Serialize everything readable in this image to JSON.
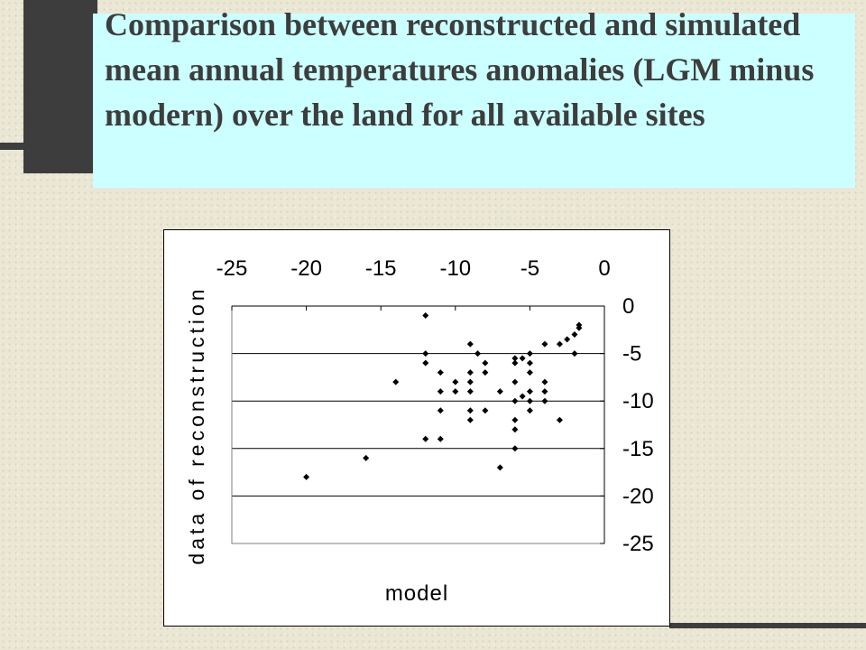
{
  "slide": {
    "title": "Comparison between reconstructed and simulated mean annual temperatures anomalies (LGM minus modern) over the land for all available sites"
  },
  "colors": {
    "background": "#ebe7d5",
    "title_box": "#ccffff",
    "title_text": "#3d3d3d",
    "decoration": "#3d3d3d",
    "plot_background": "#ffffff",
    "points": "#000000"
  },
  "chart_data": {
    "type": "scatter",
    "title": "",
    "xlabel": "model",
    "ylabel": "data of reconstruction",
    "x_axis_position": "top",
    "y_axis_position": "right",
    "xlim": [
      -25,
      0
    ],
    "ylim": [
      -25,
      0
    ],
    "xticks": [
      "-25",
      "-20",
      "-15",
      "-10",
      "-5",
      "0"
    ],
    "yticks": [
      "0",
      "-5",
      "-10",
      "-15",
      "-20",
      "-25"
    ],
    "x_tick_values": [
      -25,
      -20,
      -15,
      -10,
      -5,
      0
    ],
    "y_tick_values": [
      0,
      -5,
      -10,
      -15,
      -20,
      -25
    ],
    "horizontal_grid": true,
    "legend": "none",
    "marker": "diamond",
    "points": [
      {
        "x": -20,
        "y": -18
      },
      {
        "x": -16,
        "y": -16
      },
      {
        "x": -14,
        "y": -8
      },
      {
        "x": -12,
        "y": -1
      },
      {
        "x": -12,
        "y": -5
      },
      {
        "x": -12,
        "y": -6
      },
      {
        "x": -12,
        "y": -14
      },
      {
        "x": -11,
        "y": -7
      },
      {
        "x": -11,
        "y": -9
      },
      {
        "x": -11,
        "y": -11
      },
      {
        "x": -11,
        "y": -14
      },
      {
        "x": -10,
        "y": -8
      },
      {
        "x": -10,
        "y": -9
      },
      {
        "x": -9,
        "y": -4
      },
      {
        "x": -9,
        "y": -7
      },
      {
        "x": -9,
        "y": -8
      },
      {
        "x": -9,
        "y": -9
      },
      {
        "x": -9,
        "y": -11
      },
      {
        "x": -9,
        "y": -12
      },
      {
        "x": -8.5,
        "y": -5
      },
      {
        "x": -8,
        "y": -6
      },
      {
        "x": -8,
        "y": -7
      },
      {
        "x": -8,
        "y": -11
      },
      {
        "x": -7,
        "y": -9
      },
      {
        "x": -7,
        "y": -17
      },
      {
        "x": -6,
        "y": -5.5
      },
      {
        "x": -6,
        "y": -6
      },
      {
        "x": -6,
        "y": -8
      },
      {
        "x": -6,
        "y": -10
      },
      {
        "x": -6,
        "y": -12
      },
      {
        "x": -6,
        "y": -13
      },
      {
        "x": -6,
        "y": -15
      },
      {
        "x": -5.5,
        "y": -5.5
      },
      {
        "x": -5.5,
        "y": -9.5
      },
      {
        "x": -5,
        "y": -5
      },
      {
        "x": -5,
        "y": -6
      },
      {
        "x": -5,
        "y": -7
      },
      {
        "x": -5,
        "y": -9
      },
      {
        "x": -5,
        "y": -10
      },
      {
        "x": -5,
        "y": -11
      },
      {
        "x": -4,
        "y": -4
      },
      {
        "x": -4,
        "y": -8
      },
      {
        "x": -4,
        "y": -9
      },
      {
        "x": -4,
        "y": -10
      },
      {
        "x": -3,
        "y": -4
      },
      {
        "x": -3,
        "y": -12
      },
      {
        "x": -2.5,
        "y": -3.5
      },
      {
        "x": -2,
        "y": -3
      },
      {
        "x": -2,
        "y": -5
      },
      {
        "x": -1.7,
        "y": -2.3
      },
      {
        "x": -1.7,
        "y": -2
      }
    ]
  }
}
